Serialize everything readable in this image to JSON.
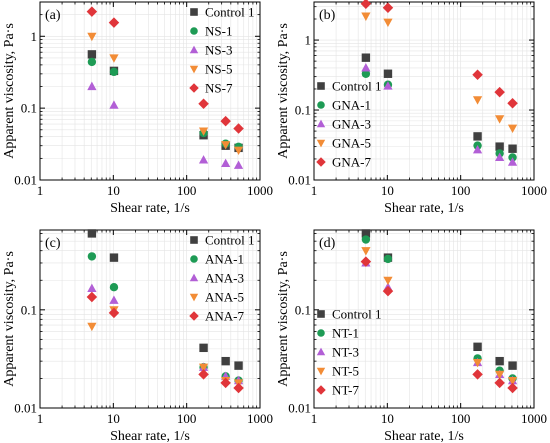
{
  "chart_data": [
    {
      "type": "scatter",
      "panel_label": "(a)",
      "xlabel": "Shear rate, 1/s",
      "ylabel": "Apparent viscosity, Pa·s",
      "xscale": "log",
      "yscale": "log",
      "xlim": [
        1,
        1000
      ],
      "ylim": [
        0.01,
        3
      ],
      "x_ticks": [
        "1",
        "10",
        "100",
        "1000"
      ],
      "y_ticks": [
        "0.01",
        "0.1",
        "1"
      ],
      "grid": true,
      "legend_position": "top-right",
      "series": [
        {
          "name": "Control 1",
          "marker": "square",
          "color": "#404040",
          "x": [
            5.1,
            10.2,
            170,
            340,
            510
          ],
          "y": [
            0.56,
            0.33,
            0.042,
            0.03,
            0.028
          ]
        },
        {
          "name": "NS-1",
          "marker": "circle",
          "color": "#1e9b55",
          "x": [
            5.1,
            10.2,
            170,
            340,
            510
          ],
          "y": [
            0.44,
            0.32,
            0.045,
            0.032,
            0.029
          ]
        },
        {
          "name": "NS-3",
          "marker": "triangle-up",
          "color": "#b25fd6",
          "x": [
            5.1,
            10.2,
            170,
            340,
            510
          ],
          "y": [
            0.2,
            0.11,
            0.019,
            0.017,
            0.016
          ]
        },
        {
          "name": "NS-5",
          "marker": "triangle-down",
          "color": "#f28c36",
          "x": [
            5.1,
            10.2,
            170,
            340,
            510
          ],
          "y": [
            1.0,
            0.5,
            0.048,
            0.031,
            0.026
          ]
        },
        {
          "name": "NS-7",
          "marker": "diamond",
          "color": "#e0353a",
          "x": [
            5.1,
            10.2,
            170,
            340,
            510
          ],
          "y": [
            2.2,
            1.55,
            0.115,
            0.066,
            0.052
          ]
        }
      ]
    },
    {
      "type": "scatter",
      "panel_label": "(b)",
      "xlabel": "Shear rate, 1/s",
      "ylabel": "Apparent viscosity, Pa·s",
      "xscale": "log",
      "yscale": "log",
      "xlim": [
        1,
        1000
      ],
      "ylim": [
        0.01,
        3.5
      ],
      "x_ticks": [
        "1",
        "10",
        "100",
        "1000"
      ],
      "y_ticks": [
        "0.01",
        "0.1",
        "1"
      ],
      "grid": true,
      "legend_position": "bottom-left",
      "series": [
        {
          "name": "Control 1",
          "marker": "square",
          "color": "#404040",
          "x": [
            5.1,
            10.2,
            170,
            340,
            510
          ],
          "y": [
            0.56,
            0.33,
            0.042,
            0.03,
            0.028
          ]
        },
        {
          "name": "GNA-1",
          "marker": "circle",
          "color": "#1e9b55",
          "x": [
            5.1,
            10.2,
            170,
            340,
            510
          ],
          "y": [
            0.33,
            0.23,
            0.031,
            0.024,
            0.021
          ]
        },
        {
          "name": "GNA-3",
          "marker": "triangle-up",
          "color": "#b25fd6",
          "x": [
            5.1,
            10.2,
            170,
            340,
            510
          ],
          "y": [
            0.4,
            0.22,
            0.027,
            0.021,
            0.018
          ]
        },
        {
          "name": "GNA-5",
          "marker": "triangle-down",
          "color": "#f28c36",
          "x": [
            5.1,
            10.2,
            170,
            340,
            510
          ],
          "y": [
            2.2,
            1.8,
            0.14,
            0.075,
            0.055
          ]
        },
        {
          "name": "GNA-7",
          "marker": "diamond",
          "color": "#e0353a",
          "x": [
            5.1,
            10.2,
            170,
            340,
            510
          ],
          "y": [
            3.3,
            2.9,
            0.32,
            0.18,
            0.125
          ]
        }
      ]
    },
    {
      "type": "scatter",
      "panel_label": "(c)",
      "xlabel": "Shear rate, 1/s",
      "ylabel": "Apparent viscosity, Pa·s",
      "xscale": "log",
      "yscale": "log",
      "xlim": [
        1,
        1000
      ],
      "ylim": [
        0.01,
        0.65
      ],
      "x_ticks": [
        "1",
        "10",
        "100",
        "1000"
      ],
      "y_ticks": [
        "0.01",
        "0.1"
      ],
      "grid": true,
      "legend_position": "top-right",
      "series": [
        {
          "name": "Control 1",
          "marker": "square",
          "color": "#404040",
          "x": [
            5.1,
            10.2,
            170,
            340,
            510
          ],
          "y": [
            0.6,
            0.34,
            0.041,
            0.03,
            0.027
          ]
        },
        {
          "name": "ANA-1",
          "marker": "circle",
          "color": "#1e9b55",
          "x": [
            5.1,
            10.2,
            170,
            340,
            510
          ],
          "y": [
            0.35,
            0.17,
            0.026,
            0.021,
            0.019
          ]
        },
        {
          "name": "ANA-3",
          "marker": "triangle-up",
          "color": "#b25fd6",
          "x": [
            5.1,
            10.2,
            170,
            340,
            510
          ],
          "y": [
            0.165,
            0.125,
            0.026,
            0.021,
            0.019
          ]
        },
        {
          "name": "ANA-5",
          "marker": "triangle-down",
          "color": "#f28c36",
          "x": [
            5.1,
            10.2,
            170,
            340,
            510
          ],
          "y": [
            0.068,
            0.1,
            0.026,
            0.019,
            0.018
          ]
        },
        {
          "name": "ANA-7",
          "marker": "diamond",
          "color": "#e0353a",
          "x": [
            5.1,
            10.2,
            170,
            340,
            510
          ],
          "y": [
            0.135,
            0.093,
            0.022,
            0.018,
            0.016
          ]
        }
      ]
    },
    {
      "type": "scatter",
      "panel_label": "(d)",
      "xlabel": "Shear rate, 1/s",
      "ylabel": "Apparent viscosity, Pa·s",
      "xscale": "log",
      "yscale": "log",
      "xlim": [
        1,
        1000
      ],
      "ylim": [
        0.01,
        0.65
      ],
      "x_ticks": [
        "1",
        "10",
        "100",
        "1000"
      ],
      "y_ticks": [
        "0.01",
        "0.1"
      ],
      "grid": true,
      "legend_position": "bottom-left",
      "series": [
        {
          "name": "Control 1",
          "marker": "square",
          "color": "#404040",
          "x": [
            5.1,
            10.2,
            170,
            340,
            510
          ],
          "y": [
            0.6,
            0.34,
            0.042,
            0.03,
            0.027
          ]
        },
        {
          "name": "NT-1",
          "marker": "circle",
          "color": "#1e9b55",
          "x": [
            5.1,
            10.2,
            170,
            340,
            510
          ],
          "y": [
            0.52,
            0.33,
            0.032,
            0.024,
            0.02
          ]
        },
        {
          "name": "NT-3",
          "marker": "triangle-up",
          "color": "#b25fd6",
          "x": [
            5.1,
            10.2,
            170,
            340,
            510
          ],
          "y": [
            0.3,
            0.17,
            0.029,
            0.022,
            0.019
          ]
        },
        {
          "name": "NT-5",
          "marker": "triangle-down",
          "color": "#f28c36",
          "x": [
            5.1,
            10.2,
            170,
            340,
            510
          ],
          "y": [
            0.4,
            0.2,
            0.029,
            0.022,
            0.019
          ]
        },
        {
          "name": "NT-7",
          "marker": "diamond",
          "color": "#e0353a",
          "x": [
            5.1,
            10.2,
            170,
            340,
            510
          ],
          "y": [
            0.31,
            0.155,
            0.022,
            0.018,
            0.016
          ]
        }
      ]
    }
  ]
}
